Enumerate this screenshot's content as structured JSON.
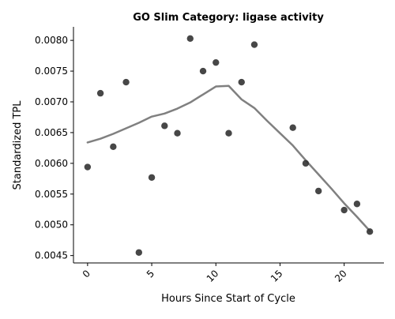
{
  "chart_data": {
    "type": "scatter",
    "title": "GO Slim Category: ligase activity",
    "xlabel": "Hours Since Start of Cycle",
    "ylabel": "Standardized TPL",
    "xlim": [
      -1.1,
      23.1
    ],
    "ylim": [
      0.00438,
      0.00822
    ],
    "xticks": [
      0,
      5,
      10,
      15,
      20
    ],
    "xtick_labels": [
      "0",
      "5",
      "10",
      "15",
      "20"
    ],
    "yticks": [
      0.0045,
      0.005,
      0.0055,
      0.006,
      0.0065,
      0.007,
      0.0075,
      0.008
    ],
    "ytick_labels": [
      "0.0045",
      "0.0050",
      "0.0055",
      "0.0060",
      "0.0065",
      "0.0070",
      "0.0075",
      "0.0080"
    ],
    "grid": false,
    "legend": "none",
    "point_color": "#333333",
    "line_color": "#808080",
    "series": [
      {
        "type": "scatter",
        "x": [
          0,
          1,
          2,
          3,
          4,
          5,
          6,
          7,
          8,
          9,
          10,
          11,
          12,
          13,
          16,
          17,
          18,
          20,
          21,
          22
        ],
        "y": [
          0.00594,
          0.00714,
          0.00627,
          0.00732,
          0.00455,
          0.00577,
          0.00661,
          0.00649,
          0.00803,
          0.0075,
          0.00764,
          0.00649,
          0.00732,
          0.00793,
          0.00658,
          0.006,
          0.00555,
          0.00524,
          0.00534,
          0.00489
        ]
      },
      {
        "type": "line",
        "x": [
          0,
          1,
          2,
          3,
          4,
          5,
          6,
          7,
          8,
          9,
          10,
          11,
          12,
          13,
          14,
          15,
          16,
          17,
          18,
          19,
          20,
          21,
          22
        ],
        "y": [
          0.00634,
          0.0064,
          0.00648,
          0.00657,
          0.00666,
          0.00676,
          0.00681,
          0.00689,
          0.00699,
          0.00712,
          0.00725,
          0.00726,
          0.00704,
          0.0069,
          0.00669,
          0.00649,
          0.00629,
          0.00605,
          0.00582,
          0.00559,
          0.00535,
          0.00513,
          0.0049
        ]
      }
    ]
  }
}
